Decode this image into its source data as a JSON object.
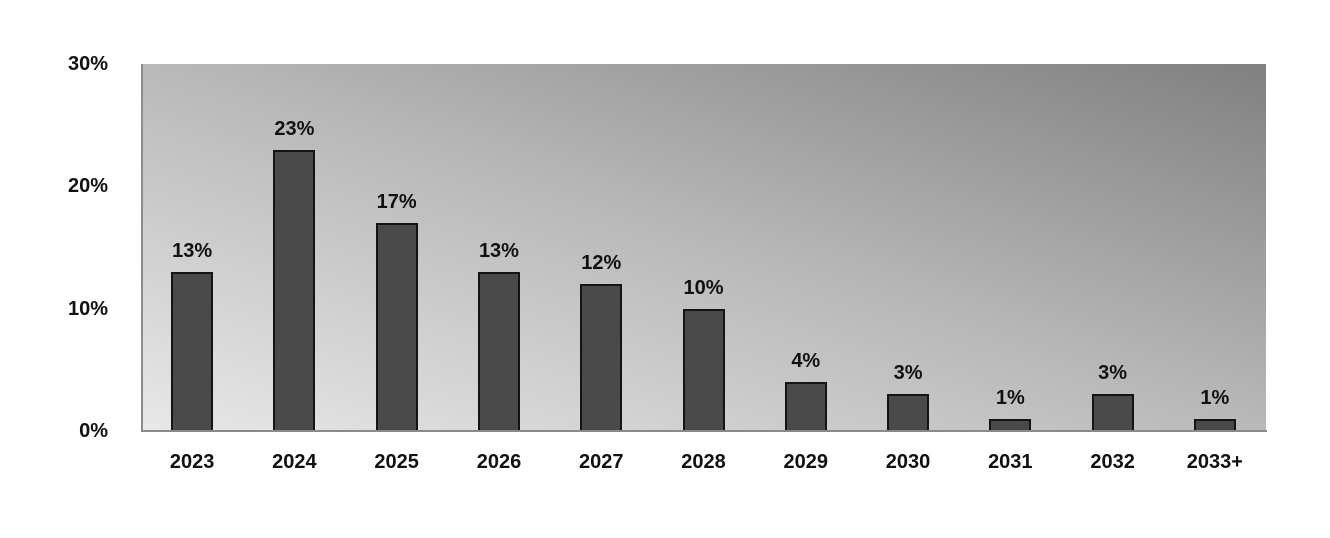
{
  "chart_data": {
    "type": "bar",
    "title": "",
    "xlabel": "",
    "ylabel": "",
    "categories": [
      "2023",
      "2024",
      "2025",
      "2026",
      "2027",
      "2028",
      "2029",
      "2030",
      "2031",
      "2032",
      "2033+"
    ],
    "values": [
      13,
      23,
      17,
      13,
      12,
      10,
      4,
      3,
      1,
      3,
      1
    ],
    "value_labels": [
      "13%",
      "23%",
      "17%",
      "13%",
      "12%",
      "10%",
      "4%",
      "3%",
      "1%",
      "3%",
      "1%"
    ],
    "ylim": [
      0,
      30
    ],
    "y_ticks": [
      0,
      10,
      20,
      30
    ],
    "y_tick_labels": [
      "0%",
      "10%",
      "20%",
      "30%"
    ],
    "grid": false,
    "legend": null,
    "colors": {
      "bar_fill": "#4a4a4a",
      "bar_border": "#141414",
      "plot_gradient_bottom_left": "#e8e8e8",
      "plot_gradient_top_right": "#808080",
      "axis_line": "#8a8a8a"
    }
  }
}
